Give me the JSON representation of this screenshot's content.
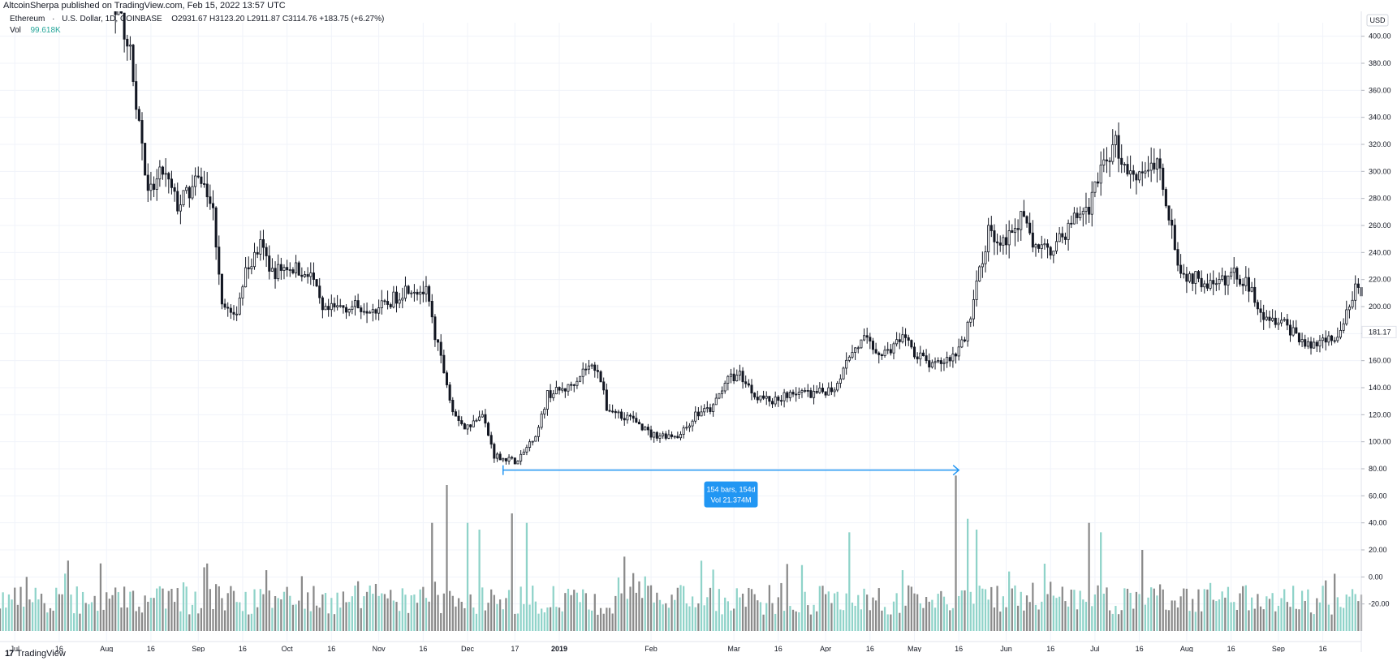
{
  "header": {
    "publisher_line": "AltcoinSherpa published on TradingView.com, Feb 15, 2022 13:57 UTC"
  },
  "legend": {
    "symbol": "Ethereum",
    "separator": "·",
    "currency": "U.S. Dollar",
    "interval": "1D",
    "exchange": "COINBASE",
    "ohlc": "O2931.67 H3123.20 L2911.87 C3114.76 +183.75 (+6.27%)",
    "volume_label": "Vol",
    "volume_value": "99.618K"
  },
  "price_axis": {
    "currency_badge": "USD",
    "last_price_label": "181.17"
  },
  "measure_tool": {
    "line1": "154 bars, 154d",
    "line2": "Vol 21.374M"
  },
  "footer": {
    "brand": "TradingView",
    "logo_glyph": "17"
  },
  "colors": {
    "candle": "#131722",
    "vol_up": "#8fd3c9",
    "vol_down": "#8a8a8a",
    "tool": "#2196f3",
    "grid": "#f0f3fa"
  },
  "chart_data": {
    "type": "candlestick",
    "y_ticks": [
      -20,
      0,
      20,
      40,
      60,
      80,
      100,
      120,
      140,
      160,
      180,
      200,
      220,
      240,
      260,
      280,
      300,
      320,
      340,
      360,
      380,
      400
    ],
    "ylim": [
      -40,
      410
    ],
    "x_labels": [
      {
        "label": "Jul",
        "d": 0
      },
      {
        "label": "16",
        "d": 15
      },
      {
        "label": "Aug",
        "d": 31
      },
      {
        "label": "16",
        "d": 46
      },
      {
        "label": "Sep",
        "d": 62
      },
      {
        "label": "16",
        "d": 77
      },
      {
        "label": "Oct",
        "d": 92
      },
      {
        "label": "16",
        "d": 107
      },
      {
        "label": "Nov",
        "d": 123
      },
      {
        "label": "16",
        "d": 138
      },
      {
        "label": "Dec",
        "d": 153
      },
      {
        "label": "17",
        "d": 169
      },
      {
        "label": "2019",
        "d": 184
      },
      {
        "label": "Feb",
        "d": 215
      },
      {
        "label": "Mar",
        "d": 243
      },
      {
        "label": "16",
        "d": 258
      },
      {
        "label": "Apr",
        "d": 274
      },
      {
        "label": "16",
        "d": 289
      },
      {
        "label": "May",
        "d": 304
      },
      {
        "label": "16",
        "d": 319
      },
      {
        "label": "Jun",
        "d": 335
      },
      {
        "label": "16",
        "d": 350
      },
      {
        "label": "Jul",
        "d": 365
      },
      {
        "label": "16",
        "d": 380
      },
      {
        "label": "Aug",
        "d": 396
      },
      {
        "label": "16",
        "d": 411
      },
      {
        "label": "Sep",
        "d": 427
      },
      {
        "label": "16",
        "d": 442
      }
    ],
    "x_start_day": -5,
    "x_end_day": 455,
    "price_keypoints": [
      {
        "d": -5,
        "p": 460
      },
      {
        "d": 30,
        "p": 450
      },
      {
        "d": 38,
        "p": 400
      },
      {
        "d": 43,
        "p": 320
      },
      {
        "d": 45,
        "p": 280
      },
      {
        "d": 50,
        "p": 300
      },
      {
        "d": 55,
        "p": 275
      },
      {
        "d": 63,
        "p": 295
      },
      {
        "d": 67,
        "p": 270
      },
      {
        "d": 70,
        "p": 205
      },
      {
        "d": 74,
        "p": 190
      },
      {
        "d": 78,
        "p": 225
      },
      {
        "d": 83,
        "p": 245
      },
      {
        "d": 87,
        "p": 225
      },
      {
        "d": 92,
        "p": 230
      },
      {
        "d": 100,
        "p": 225
      },
      {
        "d": 104,
        "p": 195
      },
      {
        "d": 110,
        "p": 200
      },
      {
        "d": 120,
        "p": 200
      },
      {
        "d": 125,
        "p": 200
      },
      {
        "d": 133,
        "p": 215
      },
      {
        "d": 139,
        "p": 210
      },
      {
        "d": 143,
        "p": 170
      },
      {
        "d": 148,
        "p": 125
      },
      {
        "d": 152,
        "p": 110
      },
      {
        "d": 158,
        "p": 120
      },
      {
        "d": 162,
        "p": 90
      },
      {
        "d": 170,
        "p": 85
      },
      {
        "d": 177,
        "p": 110
      },
      {
        "d": 180,
        "p": 135
      },
      {
        "d": 187,
        "p": 140
      },
      {
        "d": 193,
        "p": 155
      },
      {
        "d": 197,
        "p": 155
      },
      {
        "d": 200,
        "p": 125
      },
      {
        "d": 210,
        "p": 115
      },
      {
        "d": 215,
        "p": 105
      },
      {
        "d": 225,
        "p": 105
      },
      {
        "d": 230,
        "p": 120
      },
      {
        "d": 236,
        "p": 125
      },
      {
        "d": 240,
        "p": 145
      },
      {
        "d": 245,
        "p": 150
      },
      {
        "d": 250,
        "p": 135
      },
      {
        "d": 256,
        "p": 130
      },
      {
        "d": 262,
        "p": 137
      },
      {
        "d": 270,
        "p": 135
      },
      {
        "d": 277,
        "p": 140
      },
      {
        "d": 282,
        "p": 165
      },
      {
        "d": 287,
        "p": 175
      },
      {
        "d": 293,
        "p": 165
      },
      {
        "d": 300,
        "p": 175
      },
      {
        "d": 305,
        "p": 165
      },
      {
        "d": 310,
        "p": 155
      },
      {
        "d": 318,
        "p": 165
      },
      {
        "d": 321,
        "p": 175
      },
      {
        "d": 325,
        "p": 215
      },
      {
        "d": 329,
        "p": 255
      },
      {
        "d": 335,
        "p": 250
      },
      {
        "d": 340,
        "p": 265
      },
      {
        "d": 346,
        "p": 240
      },
      {
        "d": 352,
        "p": 245
      },
      {
        "d": 358,
        "p": 265
      },
      {
        "d": 363,
        "p": 275
      },
      {
        "d": 367,
        "p": 305
      },
      {
        "d": 372,
        "p": 320
      },
      {
        "d": 376,
        "p": 300
      },
      {
        "d": 381,
        "p": 300
      },
      {
        "d": 386,
        "p": 310
      },
      {
        "d": 390,
        "p": 270
      },
      {
        "d": 394,
        "p": 225
      },
      {
        "d": 400,
        "p": 220
      },
      {
        "d": 406,
        "p": 215
      },
      {
        "d": 412,
        "p": 225
      },
      {
        "d": 417,
        "p": 215
      },
      {
        "d": 422,
        "p": 195
      },
      {
        "d": 427,
        "p": 190
      },
      {
        "d": 433,
        "p": 180
      },
      {
        "d": 437,
        "p": 170
      },
      {
        "d": 442,
        "p": 175
      },
      {
        "d": 448,
        "p": 180
      },
      {
        "d": 453,
        "p": 215
      },
      {
        "d": 456,
        "p": 205
      },
      {
        "d": 458,
        "p": 165
      },
      {
        "d": 462,
        "p": 165
      }
    ],
    "volume_spikes": [
      {
        "d": 146,
        "v": 68
      },
      {
        "d": 153,
        "v": 40
      },
      {
        "d": 168,
        "v": 47
      },
      {
        "d": 173,
        "v": 40
      },
      {
        "d": 141,
        "v": 40
      },
      {
        "d": 157,
        "v": 35
      },
      {
        "d": 318,
        "v": 75
      },
      {
        "d": 322,
        "v": 43
      },
      {
        "d": 325,
        "v": 35
      },
      {
        "d": 282,
        "v": 33
      },
      {
        "d": 363,
        "v": 40
      },
      {
        "d": 367,
        "v": 33
      },
      {
        "d": 381,
        "v": 20
      },
      {
        "d": 456,
        "v": 18
      },
      {
        "d": 206,
        "v": 15
      },
      {
        "d": 232,
        "v": 12
      },
      {
        "d": 29,
        "v": 10
      },
      {
        "d": 85,
        "v": 5
      },
      {
        "d": 300,
        "v": 5
      }
    ],
    "measure_tool": {
      "start_day": 165,
      "end_day": 319,
      "price": 79,
      "bars": 154
    }
  }
}
